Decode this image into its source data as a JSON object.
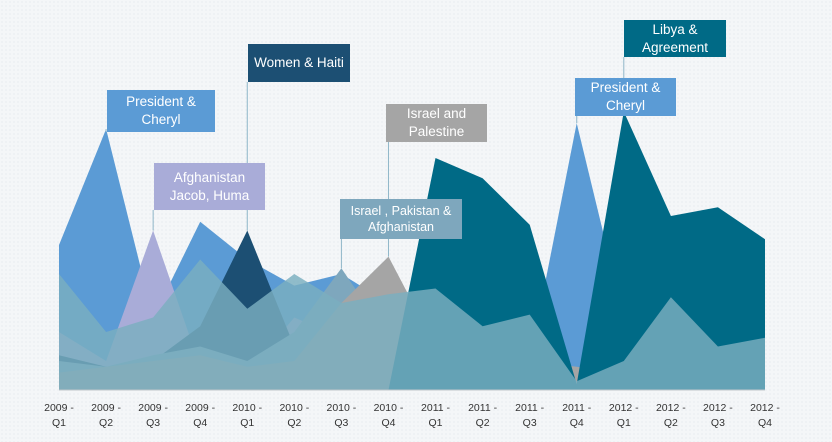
{
  "colors": {
    "president_cheryl": "#5b9bd5",
    "afghanistan": "#a9acd8",
    "women_haiti": "#1c4f73",
    "israel_palestine": "#a5a5a5",
    "israel_pakistan": "#7ea7bd",
    "libya": "#006a86",
    "base_layer": "#7aaebf"
  },
  "chart_data": {
    "type": "area",
    "categories": [
      "2009 - Q1",
      "2009 - Q2",
      "2009 - Q3",
      "2009 - Q4",
      "2010 - Q1",
      "2010 - Q2",
      "2010 - Q3",
      "2010 - Q4",
      "2011 - Q1",
      "2011 - Q2",
      "2011 - Q3",
      "2011 - Q4",
      "2012 - Q1",
      "2012 - Q2",
      "2012 - Q3",
      "2012 - Q4"
    ],
    "series": [
      {
        "name": "President & Cheryl",
        "values": [
          50,
          90,
          25,
          58,
          45,
          36,
          40,
          30,
          20,
          15,
          10,
          92,
          25,
          15,
          30,
          18
        ]
      },
      {
        "name": "Afghanistan Jacob, Huma",
        "values": [
          20,
          10,
          55,
          8,
          6,
          25,
          18,
          5,
          8,
          5,
          5,
          4,
          4,
          5,
          5,
          5
        ]
      },
      {
        "name": "Women & Haiti",
        "values": [
          12,
          8,
          10,
          22,
          55,
          15,
          10,
          12,
          5,
          8,
          10,
          6,
          5,
          8,
          6,
          8
        ]
      },
      {
        "name": "Israel , Pakistan & Afghanistan",
        "values": [
          10,
          8,
          12,
          15,
          10,
          20,
          42,
          18,
          12,
          10,
          8,
          6,
          8,
          10,
          8,
          12
        ]
      },
      {
        "name": "Israel and Palestine",
        "values": [
          6,
          8,
          10,
          12,
          8,
          10,
          30,
          46,
          15,
          12,
          10,
          8,
          6,
          8,
          10,
          12
        ]
      },
      {
        "name": "Libya & Agreement",
        "values": [
          0,
          0,
          0,
          0,
          0,
          0,
          0,
          0,
          80,
          73,
          57,
          2,
          96,
          60,
          63,
          52
        ]
      },
      {
        "values": [
          40,
          20,
          25,
          45,
          28,
          40,
          30,
          33,
          35,
          22,
          26,
          3,
          10,
          32,
          15,
          18
        ]
      }
    ],
    "ylim": [
      0,
      100
    ],
    "callouts": [
      {
        "label": "President & Cheryl",
        "category": "2009 - Q2"
      },
      {
        "label": "Afghanistan Jacob, Huma",
        "category": "2009 - Q3"
      },
      {
        "label": "Women & Haiti",
        "category": "2010 - Q1"
      },
      {
        "label": "Israel , Pakistan & Afghanistan",
        "category": "2010 - Q3"
      },
      {
        "label": "Israel and Palestine",
        "category": "2010 - Q4"
      },
      {
        "label": "President & Cheryl",
        "category": "2011 - Q4"
      },
      {
        "label": "Libya & Agreement",
        "category": "2012 - Q1"
      }
    ]
  }
}
